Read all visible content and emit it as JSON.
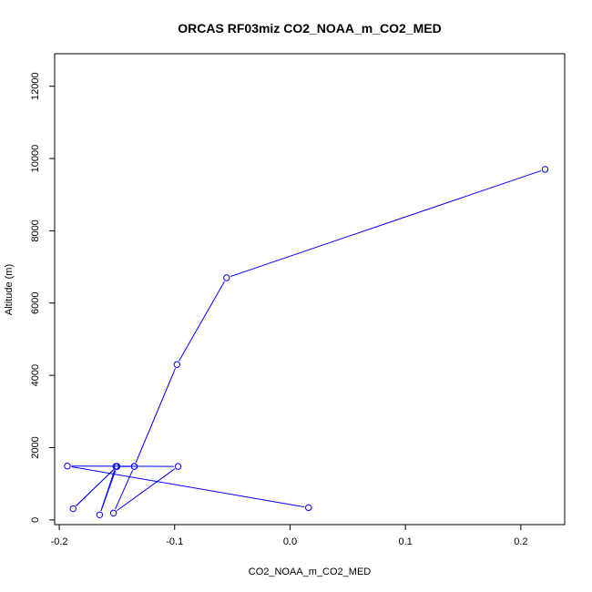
{
  "chart_data": {
    "type": "line",
    "title": "ORCAS RF03miz CO2_NOAA_m_CO2_MED",
    "xlabel": "CO2_NOAA_m_CO2_MED",
    "ylabel": "Altitude (m)",
    "xlim": [
      -0.204,
      0.238
    ],
    "ylim": [
      -130,
      12900
    ],
    "x_ticks": [
      -0.2,
      -0.1,
      0.0,
      0.1,
      0.2
    ],
    "x_tick_labels": [
      "-0.2",
      "-0.1",
      "0.0",
      "0.1",
      "0.2"
    ],
    "y_ticks": [
      0,
      2000,
      4000,
      6000,
      8000,
      10000,
      12000
    ],
    "y_tick_labels": [
      "0",
      "2000",
      "4000",
      "6000",
      "8000",
      "10000",
      "12000"
    ],
    "grid": false,
    "series": [
      {
        "color": "#0000ff",
        "marker": "open-circle",
        "x": [
          0.221,
          -0.055,
          -0.098,
          -0.135,
          -0.151,
          -0.165,
          -0.15,
          -0.188,
          -0.15,
          -0.135,
          -0.153,
          -0.097,
          -0.193,
          0.016
        ],
        "y": [
          9700,
          6700,
          4300,
          1480,
          1480,
          140,
          1480,
          310,
          1480,
          1480,
          190,
          1480,
          1490,
          340
        ]
      }
    ]
  }
}
